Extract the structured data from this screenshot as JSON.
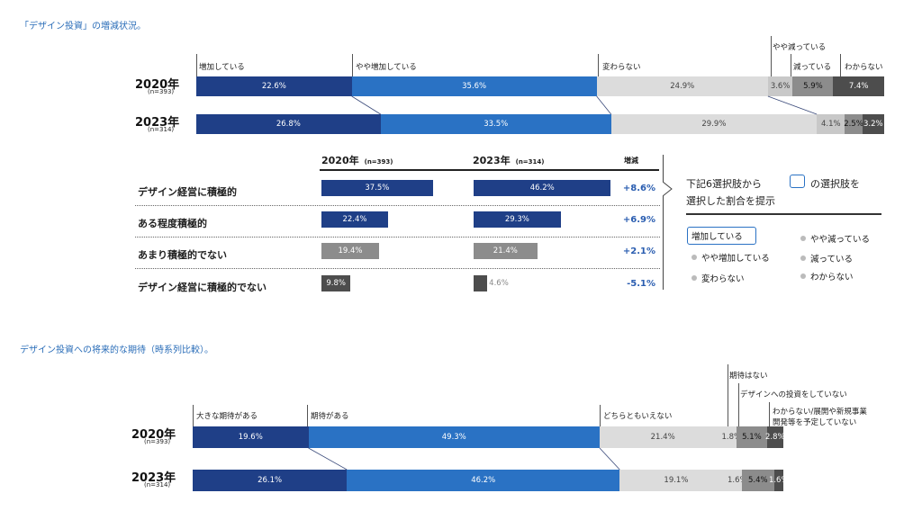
{
  "colors": {
    "dark": "#1f3f87",
    "mid": "#2a72c4",
    "light": "#dcdcdc",
    "lightgray2": "#c8c8c8",
    "gray": "#8c8c8c",
    "dark_gray": "#4d4d4d",
    "accent_text": "#2a6db8"
  },
  "chart1": {
    "title": "「デザイン投資」の増減状況。",
    "categories": [
      "増加している",
      "やや増加している",
      "変わらない",
      "やや減っている",
      "減っている",
      "わからない"
    ],
    "rows": [
      {
        "year": "2020年",
        "n": "(n=393)",
        "values": [
          22.6,
          35.6,
          24.9,
          3.6,
          5.9,
          7.4
        ]
      },
      {
        "year": "2023年",
        "n": "(n=314)",
        "values": [
          26.8,
          33.5,
          29.9,
          4.1,
          2.5,
          3.2
        ]
      }
    ]
  },
  "summary": {
    "col2020": "2020年",
    "col2020_n": "(n=393)",
    "col2023": "2023年",
    "col2023_n": "(n=314)",
    "col_diff": "増減",
    "rows": [
      {
        "label": "デザイン経営に積極的",
        "v2020": 37.5,
        "v2023": 46.2,
        "diff": "+8.6%"
      },
      {
        "label": "ある程度積極的",
        "v2020": 22.4,
        "v2023": 29.3,
        "diff": "+6.9%"
      },
      {
        "label": "あまり積極的でない",
        "v2020": 19.4,
        "v2023": 21.4,
        "diff": "+2.1%"
      },
      {
        "label": "デザイン経営に積極的でない",
        "v2020": 9.8,
        "v2023": 4.6,
        "diff": "-5.1%"
      }
    ],
    "note_a": "下記6選択肢から",
    "note_b": "の選択肢を",
    "note_c": "選択した割合を提示",
    "legend": [
      "増加している",
      "やや増加している",
      "変わらない",
      "やや減っている",
      "減っている",
      "わからない"
    ]
  },
  "chart2": {
    "title": "デザイン投資への将来的な期待（時系列比較）。",
    "categories": [
      "大きな期待がある",
      "期待がある",
      "どちらともいえない",
      "期待はない",
      "デザインへの投資をしていない",
      "わからない/展開や新規事業",
      "開発等を予定していない"
    ],
    "rows": [
      {
        "year": "2020年",
        "n": "(n=393)",
        "values": [
          19.6,
          49.3,
          21.4,
          1.8,
          5.1,
          2.8
        ]
      },
      {
        "year": "2023年",
        "n": "(n=314)",
        "values": [
          26.1,
          46.2,
          19.1,
          1.6,
          5.4,
          1.6
        ]
      }
    ]
  },
  "chart_data": [
    {
      "type": "bar",
      "title": "「デザイン投資」の増減状況。",
      "stacked": true,
      "categories": [
        "2020年",
        "2023年"
      ],
      "series": [
        {
          "name": "増加している",
          "values": [
            22.6,
            26.8
          ]
        },
        {
          "name": "やや増加している",
          "values": [
            35.6,
            33.5
          ]
        },
        {
          "name": "変わらない",
          "values": [
            24.9,
            29.9
          ]
        },
        {
          "name": "やや減っている",
          "values": [
            3.6,
            4.1
          ]
        },
        {
          "name": "減っている",
          "values": [
            5.9,
            2.5
          ]
        },
        {
          "name": "わからない",
          "values": [
            7.4,
            3.2
          ]
        }
      ]
    },
    {
      "type": "bar",
      "categories": [
        "デザイン経営に積極的",
        "ある程度積極的",
        "あまり積極的でない",
        "デザイン経営に積極的でない"
      ],
      "series": [
        {
          "name": "2020年",
          "values": [
            37.5,
            22.4,
            19.4,
            9.8
          ]
        },
        {
          "name": "2023年",
          "values": [
            46.2,
            29.3,
            21.4,
            4.6
          ]
        }
      ]
    },
    {
      "type": "bar",
      "title": "デザイン投資への将来的な期待（時系列比較）。",
      "stacked": true,
      "categories": [
        "2020年",
        "2023年"
      ],
      "series": [
        {
          "name": "大きな期待がある",
          "values": [
            19.6,
            26.1
          ]
        },
        {
          "name": "期待がある",
          "values": [
            49.3,
            46.2
          ]
        },
        {
          "name": "どちらともいえない",
          "values": [
            21.4,
            19.1
          ]
        },
        {
          "name": "期待はない",
          "values": [
            1.8,
            1.6
          ]
        },
        {
          "name": "デザインへの投資をしていない",
          "values": [
            5.1,
            5.4
          ]
        },
        {
          "name": "わからない/展開や新規事業開発等を予定していない",
          "values": [
            2.8,
            1.6
          ]
        }
      ]
    }
  ]
}
